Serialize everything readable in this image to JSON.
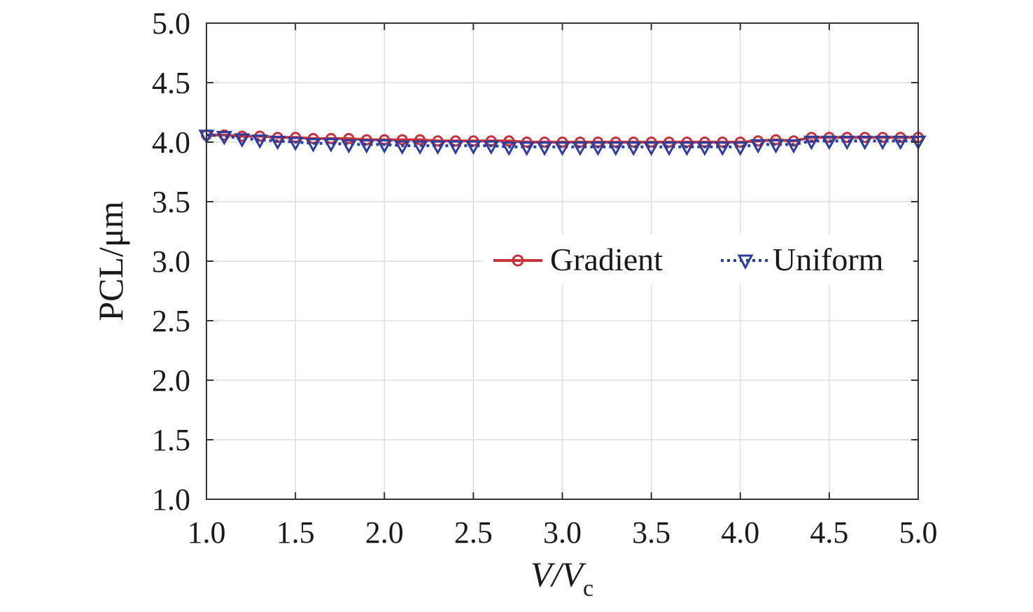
{
  "chart_data": {
    "type": "line",
    "xlabel": "V/V",
    "xlabel_subscript": "c",
    "ylabel": "PCL/μm",
    "xlim": [
      1.0,
      5.0
    ],
    "ylim": [
      1.0,
      5.0
    ],
    "x_ticks": [
      "1.0",
      "1.5",
      "2.0",
      "2.5",
      "3.0",
      "3.5",
      "4.0",
      "4.5",
      "5.0"
    ],
    "y_ticks": [
      "1.0",
      "1.5",
      "2.0",
      "2.5",
      "3.0",
      "3.5",
      "4.0",
      "4.5",
      "5.0"
    ],
    "grid": true,
    "legend_position": "center-right",
    "x": [
      1.0,
      1.1,
      1.2,
      1.3,
      1.4,
      1.5,
      1.6,
      1.7,
      1.8,
      1.9,
      2.0,
      2.1,
      2.2,
      2.3,
      2.4,
      2.5,
      2.6,
      2.7,
      2.8,
      2.9,
      3.0,
      3.1,
      3.2,
      3.3,
      3.4,
      3.5,
      3.6,
      3.7,
      3.8,
      3.9,
      4.0,
      4.1,
      4.2,
      4.3,
      4.4,
      4.5,
      4.6,
      4.7,
      4.8,
      4.9,
      5.0
    ],
    "series": [
      {
        "name": "Gradient",
        "color": "#c8323c",
        "marker": "circle",
        "line_style": "solid",
        "values": [
          4.06,
          4.06,
          4.05,
          4.05,
          4.04,
          4.04,
          4.03,
          4.03,
          4.03,
          4.02,
          4.02,
          4.02,
          4.02,
          4.01,
          4.01,
          4.01,
          4.01,
          4.01,
          4.0,
          4.0,
          4.0,
          4.0,
          4.0,
          4.0,
          4.0,
          4.0,
          4.0,
          4.0,
          4.0,
          4.0,
          4.0,
          4.01,
          4.02,
          4.01,
          4.04,
          4.04,
          4.04,
          4.04,
          4.04,
          4.04,
          4.04
        ]
      },
      {
        "name": "Uniform",
        "color": "#2b3e9e",
        "marker": "triangle-down",
        "line_style": "dotted",
        "values": [
          4.06,
          4.05,
          4.03,
          4.02,
          4.01,
          4.0,
          3.99,
          3.99,
          3.98,
          3.98,
          3.98,
          3.97,
          3.97,
          3.97,
          3.97,
          3.97,
          3.97,
          3.96,
          3.96,
          3.96,
          3.96,
          3.96,
          3.96,
          3.96,
          3.96,
          3.96,
          3.96,
          3.96,
          3.96,
          3.96,
          3.96,
          3.98,
          3.98,
          3.98,
          4.01,
          4.01,
          4.01,
          4.01,
          4.01,
          4.01,
          4.01
        ]
      }
    ]
  }
}
